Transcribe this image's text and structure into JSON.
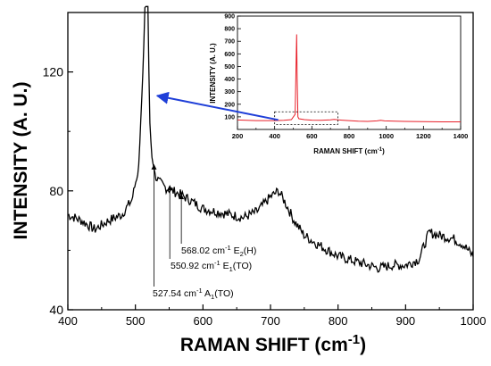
{
  "chart_data": [
    {
      "type": "line",
      "xlabel": "RAMAN SHIFT",
      "xunit_base": "(cm",
      "xunit_sup": "-1",
      "xunit_close": ")",
      "ylabel": "INTENSITY (A. U.)",
      "xlim": [
        400,
        1000
      ],
      "ylim": [
        40,
        140
      ],
      "xticks": [
        "400",
        "500",
        "600",
        "700",
        "800",
        "900",
        "1000"
      ],
      "yticks": [
        "40",
        "80",
        "120"
      ],
      "series": [
        {
          "color": "#000000",
          "x": [
            400,
            420,
            440,
            460,
            480,
            495,
            505,
            512,
            515,
            518,
            521,
            524,
            527,
            530,
            535,
            545,
            555,
            565,
            580,
            600,
            620,
            640,
            660,
            680,
            700,
            712,
            722,
            735,
            750,
            770,
            800,
            830,
            860,
            880,
            900,
            920,
            928,
            935,
            950,
            970,
            985,
            1000
          ],
          "y": [
            72,
            70,
            67,
            70,
            72,
            77,
            88,
            125,
            150,
            150,
            105,
            92,
            88,
            85,
            83,
            81,
            80,
            79,
            77,
            74,
            73,
            72,
            71,
            73,
            78,
            80,
            76,
            70,
            65,
            62,
            58,
            56,
            54,
            55,
            55,
            57,
            62,
            66,
            65,
            64,
            62,
            58
          ]
        }
      ],
      "annotations": [
        {
          "x": 527.54,
          "y": 89,
          "wavenumber": "527.54 cm",
          "sup": "-1",
          "mode": " A",
          "sub": "1",
          "suffix": "(TO)"
        },
        {
          "x": 550.92,
          "y": 82,
          "wavenumber": "550.92 cm",
          "sup": "-1",
          "mode": " E",
          "sub": "1",
          "suffix": "(TO)"
        },
        {
          "x": 568.02,
          "y": 79,
          "wavenumber": "568.02 cm",
          "sup": "-1",
          "mode": " E",
          "sub": "2",
          "suffix": "(H)"
        }
      ],
      "zoom_region": {
        "x": [
          400,
          740
        ],
        "y": [
          40,
          140
        ]
      },
      "arrow_color": "#1f3fd8"
    },
    {
      "type": "line",
      "xlabel": "RAMAN SHIFT",
      "xunit_base": "(cm",
      "xunit_sup": "-1",
      "xunit_close": ")",
      "ylabel": "INTENSITY (A. U.)",
      "xlim": [
        200,
        1400
      ],
      "ylim": [
        0,
        900
      ],
      "xticks": [
        "200",
        "400",
        "600",
        "800",
        "1000",
        "1200",
        "1400"
      ],
      "yticks": [
        "100",
        "200",
        "300",
        "400",
        "500",
        "600",
        "700",
        "800",
        "900"
      ],
      "inset_box": {
        "x": [
          400,
          740
        ],
        "y": [
          40,
          140
        ]
      },
      "series": [
        {
          "color": "#e8202a",
          "x": [
            200,
            250,
            300,
            350,
            400,
            450,
            490,
            510,
            515,
            518,
            521,
            525,
            530,
            560,
            600,
            650,
            700,
            720,
            740,
            800,
            850,
            900,
            950,
            970,
            990,
            1050,
            1100,
            1200,
            1300,
            1400
          ],
          "y": [
            75,
            72,
            70,
            70,
            70,
            72,
            78,
            120,
            500,
            755,
            400,
            100,
            85,
            78,
            74,
            72,
            76,
            80,
            76,
            70,
            66,
            64,
            68,
            72,
            68,
            66,
            64,
            62,
            60,
            60
          ]
        }
      ]
    }
  ]
}
